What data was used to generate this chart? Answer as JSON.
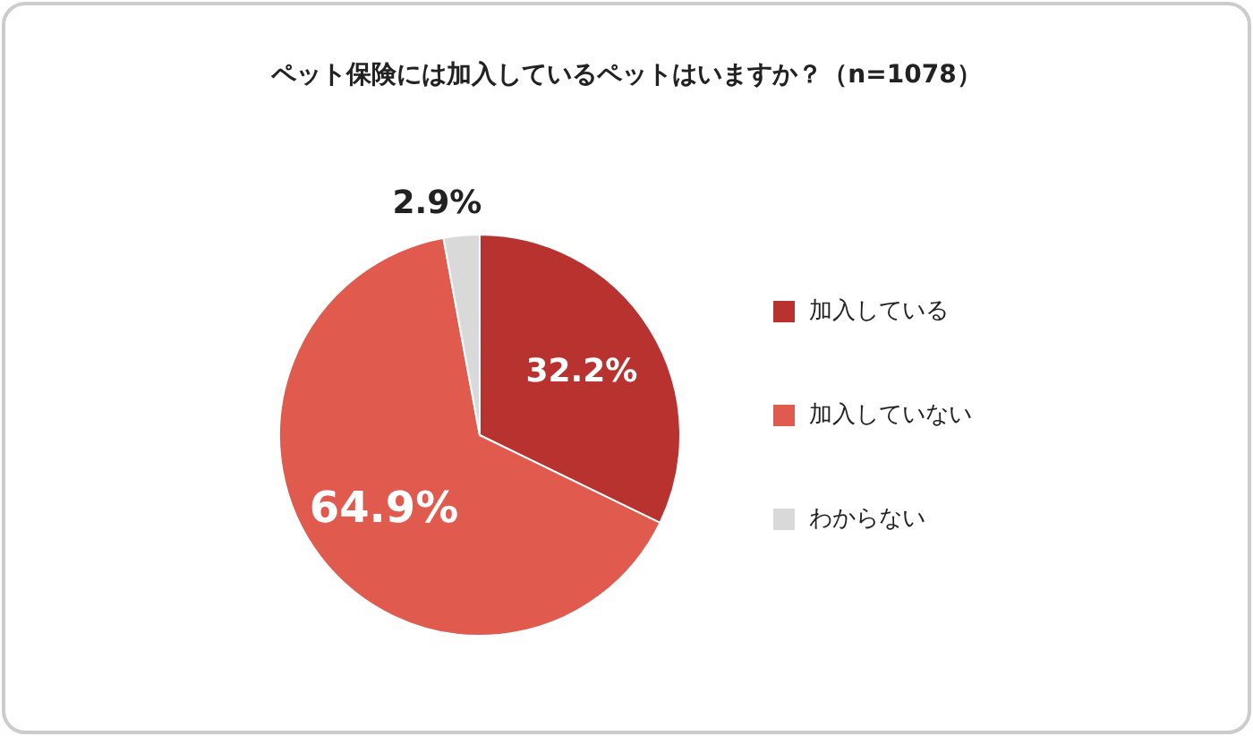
{
  "chart_data": {
    "type": "pie",
    "title": "ペット保険には加入しているペットはいますか？（n=1078）",
    "categories": [
      "加入している",
      "加入していない",
      "わからない"
    ],
    "values": [
      32.2,
      64.9,
      2.9
    ],
    "colors": [
      "#b83230",
      "#e05a4e",
      "#d9d9d9"
    ],
    "value_labels": [
      "32.2%",
      "64.9%",
      "2.9%"
    ],
    "legend": "right"
  }
}
